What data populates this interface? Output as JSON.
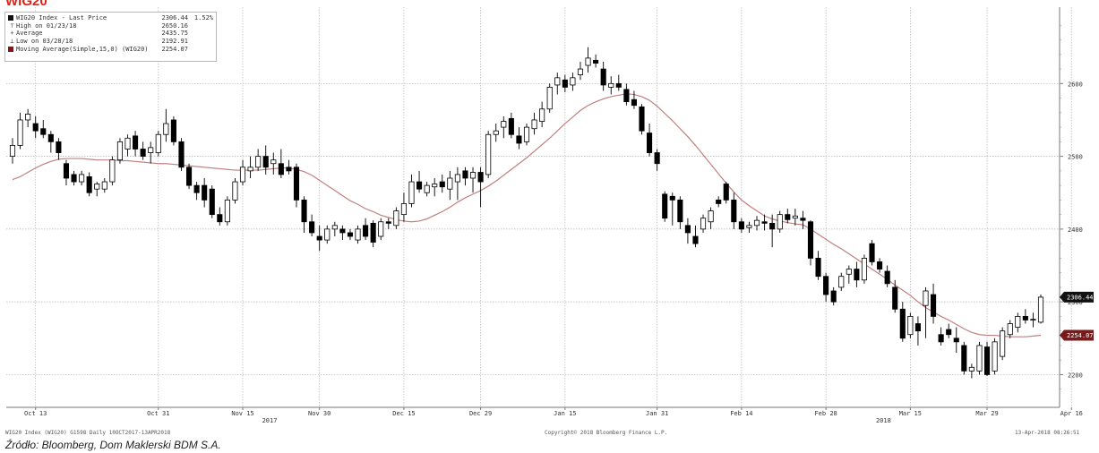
{
  "title": "WIG20",
  "legend": [
    {
      "icon": "black-square",
      "label": "WIG20 Index - Last Price",
      "value": "2306.44",
      "change": "1.52%"
    },
    {
      "icon": "high-marker",
      "label": "High on 01/23/18",
      "value": "2650.16",
      "change": ""
    },
    {
      "icon": "average-marker",
      "label": "Average",
      "value": "2435.75",
      "change": ""
    },
    {
      "icon": "low-marker",
      "label": "Low on 03/28/18",
      "value": "2192.91",
      "change": ""
    },
    {
      "icon": "dark-red-square",
      "label": "Moving Average(Simple,15,0) (WIG20)",
      "value": "2254.07",
      "change": ""
    }
  ],
  "footer": {
    "left": "WIG20 Index (WIG20) G1598  Daily 10OCT2017-13APR2018",
    "center": "Copyright© 2018 Bloomberg Finance L.P.",
    "right": "13-Apr-2018 08:26:51"
  },
  "source": "Źródło: Bloomberg, Dom Maklerski BDM S.A.",
  "colors": {
    "title": "#e0221a",
    "up_candle": "#ffffff",
    "down_candle": "#000000",
    "ma_line": "#c08080",
    "last_price_tag": "#111111",
    "ma_tag": "#7a1a1a"
  },
  "chart_data": {
    "type": "candlestick",
    "title": "WIG20",
    "x_tick_labels": [
      "Oct 13",
      "Oct 31",
      "Nov 15",
      "Nov 30",
      "Dec 15",
      "Dec 29",
      "Jan 15",
      "Jan 31",
      "Feb 14",
      "Feb 28",
      "Mar 15",
      "Mar 29",
      "Apr 16"
    ],
    "year_labels": [
      "2017",
      "2018"
    ],
    "y_ticks": [
      2200,
      2300,
      2400,
      2500,
      2600
    ],
    "ylim": [
      2155,
      2705
    ],
    "grid": true,
    "legend_position": "top-left",
    "last_price_tag": "2306.44",
    "ma_tag": "2254.07",
    "series": [
      {
        "name": "WIG20 Index - Last Price",
        "ohlc": [
          [
            2500,
            2525,
            2490,
            2515
          ],
          [
            2515,
            2560,
            2510,
            2550
          ],
          [
            2550,
            2565,
            2540,
            2558
          ],
          [
            2545,
            2555,
            2525,
            2535
          ],
          [
            2538,
            2550,
            2525,
            2530
          ],
          [
            2530,
            2535,
            2505,
            2520
          ],
          [
            2520,
            2525,
            2495,
            2505
          ],
          [
            2490,
            2495,
            2460,
            2470
          ],
          [
            2475,
            2480,
            2460,
            2465
          ],
          [
            2465,
            2480,
            2460,
            2475
          ],
          [
            2472,
            2478,
            2445,
            2450
          ],
          [
            2455,
            2465,
            2445,
            2462
          ],
          [
            2455,
            2470,
            2450,
            2465
          ],
          [
            2465,
            2500,
            2460,
            2495
          ],
          [
            2495,
            2525,
            2490,
            2520
          ],
          [
            2510,
            2530,
            2500,
            2525
          ],
          [
            2528,
            2535,
            2500,
            2510
          ],
          [
            2510,
            2520,
            2495,
            2500
          ],
          [
            2505,
            2520,
            2490,
            2512
          ],
          [
            2505,
            2535,
            2500,
            2530
          ],
          [
            2530,
            2565,
            2520,
            2545
          ],
          [
            2550,
            2555,
            2515,
            2520
          ],
          [
            2520,
            2525,
            2480,
            2485
          ],
          [
            2485,
            2490,
            2455,
            2460
          ],
          [
            2460,
            2465,
            2440,
            2450
          ],
          [
            2460,
            2470,
            2430,
            2440
          ],
          [
            2455,
            2460,
            2415,
            2420
          ],
          [
            2420,
            2430,
            2405,
            2410
          ],
          [
            2410,
            2445,
            2405,
            2440
          ],
          [
            2440,
            2470,
            2435,
            2465
          ],
          [
            2465,
            2495,
            2460,
            2485
          ],
          [
            2480,
            2500,
            2470,
            2485
          ],
          [
            2485,
            2510,
            2480,
            2500
          ],
          [
            2500,
            2515,
            2475,
            2485
          ],
          [
            2490,
            2505,
            2475,
            2495
          ],
          [
            2490,
            2510,
            2470,
            2475
          ],
          [
            2485,
            2495,
            2475,
            2480
          ],
          [
            2485,
            2490,
            2430,
            2440
          ],
          [
            2440,
            2445,
            2395,
            2410
          ],
          [
            2410,
            2420,
            2390,
            2395
          ],
          [
            2390,
            2405,
            2370,
            2385
          ],
          [
            2385,
            2405,
            2380,
            2400
          ],
          [
            2400,
            2410,
            2390,
            2405
          ],
          [
            2400,
            2405,
            2385,
            2395
          ],
          [
            2395,
            2400,
            2385,
            2390
          ],
          [
            2385,
            2405,
            2380,
            2400
          ],
          [
            2405,
            2415,
            2385,
            2390
          ],
          [
            2408,
            2412,
            2375,
            2382
          ],
          [
            2390,
            2415,
            2385,
            2410
          ],
          [
            2410,
            2415,
            2400,
            2408
          ],
          [
            2405,
            2430,
            2400,
            2425
          ],
          [
            2420,
            2450,
            2410,
            2435
          ],
          [
            2435,
            2475,
            2430,
            2465
          ],
          [
            2465,
            2480,
            2450,
            2455
          ],
          [
            2450,
            2465,
            2445,
            2460
          ],
          [
            2458,
            2470,
            2445,
            2462
          ],
          [
            2465,
            2475,
            2450,
            2458
          ],
          [
            2455,
            2480,
            2440,
            2470
          ],
          [
            2465,
            2485,
            2440,
            2475
          ],
          [
            2480,
            2485,
            2460,
            2470
          ],
          [
            2470,
            2485,
            2450,
            2478
          ],
          [
            2478,
            2485,
            2430,
            2465
          ],
          [
            2475,
            2535,
            2470,
            2530
          ],
          [
            2530,
            2545,
            2520,
            2535
          ],
          [
            2540,
            2555,
            2525,
            2548
          ],
          [
            2552,
            2560,
            2525,
            2530
          ],
          [
            2528,
            2540,
            2510,
            2518
          ],
          [
            2520,
            2545,
            2515,
            2540
          ],
          [
            2538,
            2560,
            2530,
            2550
          ],
          [
            2548,
            2575,
            2540,
            2565
          ],
          [
            2565,
            2600,
            2560,
            2595
          ],
          [
            2598,
            2615,
            2585,
            2608
          ],
          [
            2605,
            2612,
            2588,
            2595
          ],
          [
            2598,
            2615,
            2590,
            2608
          ],
          [
            2612,
            2630,
            2605,
            2620
          ],
          [
            2625,
            2650,
            2615,
            2635
          ],
          [
            2632,
            2640,
            2622,
            2628
          ],
          [
            2620,
            2630,
            2590,
            2598
          ],
          [
            2595,
            2610,
            2585,
            2600
          ],
          [
            2600,
            2612,
            2590,
            2595
          ],
          [
            2592,
            2600,
            2570,
            2575
          ],
          [
            2578,
            2590,
            2565,
            2570
          ],
          [
            2568,
            2572,
            2530,
            2535
          ],
          [
            2532,
            2545,
            2500,
            2505
          ],
          [
            2505,
            2510,
            2480,
            2490
          ],
          [
            2448,
            2452,
            2410,
            2415
          ],
          [
            2445,
            2450,
            2405,
            2440
          ],
          [
            2440,
            2445,
            2400,
            2410
          ],
          [
            2405,
            2415,
            2380,
            2395
          ],
          [
            2390,
            2405,
            2375,
            2380
          ],
          [
            2400,
            2420,
            2395,
            2415
          ],
          [
            2410,
            2430,
            2400,
            2425
          ],
          [
            2440,
            2445,
            2430,
            2435
          ],
          [
            2462,
            2465,
            2435,
            2440
          ],
          [
            2440,
            2450,
            2400,
            2410
          ],
          [
            2410,
            2415,
            2395,
            2400
          ],
          [
            2402,
            2410,
            2395,
            2405
          ],
          [
            2405,
            2418,
            2398,
            2412
          ],
          [
            2410,
            2420,
            2398,
            2408
          ],
          [
            2408,
            2420,
            2375,
            2400
          ],
          [
            2400,
            2425,
            2395,
            2420
          ],
          [
            2420,
            2428,
            2408,
            2413
          ],
          [
            2415,
            2428,
            2405,
            2418
          ],
          [
            2415,
            2425,
            2400,
            2412
          ],
          [
            2410,
            2412,
            2350,
            2360
          ],
          [
            2360,
            2370,
            2330,
            2335
          ],
          [
            2335,
            2340,
            2300,
            2310
          ],
          [
            2315,
            2320,
            2295,
            2300
          ],
          [
            2320,
            2340,
            2315,
            2335
          ],
          [
            2338,
            2350,
            2325,
            2345
          ],
          [
            2345,
            2355,
            2320,
            2330
          ],
          [
            2330,
            2365,
            2325,
            2360
          ],
          [
            2380,
            2385,
            2350,
            2355
          ],
          [
            2355,
            2360,
            2340,
            2345
          ],
          [
            2342,
            2350,
            2320,
            2325
          ],
          [
            2320,
            2330,
            2285,
            2290
          ],
          [
            2290,
            2300,
            2245,
            2250
          ],
          [
            2255,
            2285,
            2250,
            2280
          ],
          [
            2270,
            2280,
            2240,
            2260
          ],
          [
            2295,
            2320,
            2250,
            2315
          ],
          [
            2310,
            2325,
            2270,
            2280
          ],
          [
            2255,
            2265,
            2240,
            2245
          ],
          [
            2262,
            2270,
            2250,
            2255
          ],
          [
            2250,
            2265,
            2230,
            2245
          ],
          [
            2240,
            2245,
            2200,
            2205
          ],
          [
            2205,
            2215,
            2195,
            2210
          ],
          [
            2205,
            2245,
            2200,
            2240
          ],
          [
            2238,
            2245,
            2198,
            2200
          ],
          [
            2205,
            2250,
            2200,
            2245
          ],
          [
            2225,
            2265,
            2220,
            2260
          ],
          [
            2255,
            2275,
            2250,
            2270
          ],
          [
            2265,
            2285,
            2258,
            2280
          ],
          [
            2280,
            2290,
            2270,
            2275
          ],
          [
            2275,
            2285,
            2265,
            2276
          ],
          [
            2272,
            2310,
            2270,
            2306.44
          ]
        ]
      },
      {
        "name": "Moving Average(Simple,15,0) (WIG20)",
        "values": [
          2468,
          2472,
          2478,
          2484,
          2489,
          2493,
          2496,
          2497,
          2497,
          2497,
          2496,
          2495,
          2495,
          2495,
          2494,
          2494,
          2493,
          2492,
          2491,
          2490,
          2490,
          2489,
          2488,
          2487,
          2486,
          2485,
          2484,
          2483,
          2482,
          2481,
          2481,
          2481,
          2481,
          2482,
          2483,
          2484,
          2484,
          2482,
          2479,
          2474,
          2467,
          2460,
          2453,
          2446,
          2439,
          2434,
          2428,
          2424,
          2419,
          2416,
          2413,
          2411,
          2410,
          2411,
          2414,
          2419,
          2424,
          2430,
          2437,
          2443,
          2448,
          2453,
          2459,
          2466,
          2474,
          2482,
          2490,
          2498,
          2507,
          2516,
          2525,
          2535,
          2545,
          2554,
          2563,
          2570,
          2575,
          2579,
          2582,
          2584,
          2586,
          2585,
          2582,
          2577,
          2569,
          2559,
          2549,
          2538,
          2527,
          2515,
          2502,
          2489,
          2476,
          2463,
          2451,
          2440,
          2432,
          2425,
          2418,
          2414,
          2411,
          2409,
          2407,
          2406,
          2400,
          2393,
          2386,
          2379,
          2373,
          2366,
          2359,
          2352,
          2345,
          2338,
          2331,
          2323,
          2316,
          2309,
          2300,
          2292,
          2286,
          2280,
          2275,
          2269,
          2263,
          2258,
          2255,
          2254,
          2254,
          2253,
          2252,
          2252,
          2252,
          2253,
          2254.07
        ]
      }
    ]
  }
}
